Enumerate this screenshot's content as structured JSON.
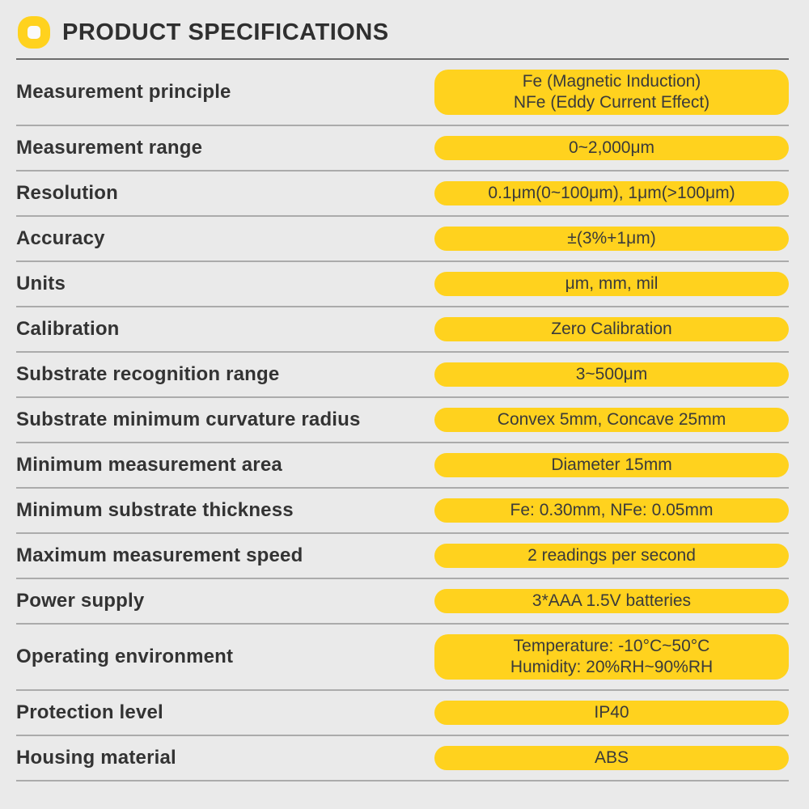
{
  "colors": {
    "accent": "#FFD21E",
    "background": "#EAEAEA",
    "text": "#333333"
  },
  "header": {
    "icon": "donut-icon",
    "title": "PRODUCT SPECIFICATIONS"
  },
  "rows": [
    {
      "label": "Measurement principle",
      "value": "Fe (Magnetic Induction)\nNFe (Eddy Current Effect)"
    },
    {
      "label": "Measurement range",
      "value": "0~2,000μm"
    },
    {
      "label": "Resolution",
      "value": "0.1μm(0~100μm), 1μm(>100μm)"
    },
    {
      "label": "Accuracy",
      "value": "±(3%+1μm)"
    },
    {
      "label": "Units",
      "value": "μm, mm, mil"
    },
    {
      "label": "Calibration",
      "value": "Zero Calibration"
    },
    {
      "label": "Substrate recognition range",
      "value": "3~500μm"
    },
    {
      "label": "Substrate minimum curvature radius",
      "value": "Convex 5mm, Concave 25mm"
    },
    {
      "label": "Minimum measurement area",
      "value": "Diameter 15mm"
    },
    {
      "label": "Minimum substrate thickness",
      "value": "Fe: 0.30mm, NFe: 0.05mm"
    },
    {
      "label": "Maximum measurement speed",
      "value": "2 readings per second"
    },
    {
      "label": "Power supply",
      "value": "3*AAA 1.5V batteries"
    },
    {
      "label": "Operating environment",
      "value": "Temperature: -10°C~50°C\nHumidity: 20%RH~90%RH"
    },
    {
      "label": "Protection level",
      "value": "IP40"
    },
    {
      "label": "Housing material",
      "value": "ABS"
    }
  ]
}
